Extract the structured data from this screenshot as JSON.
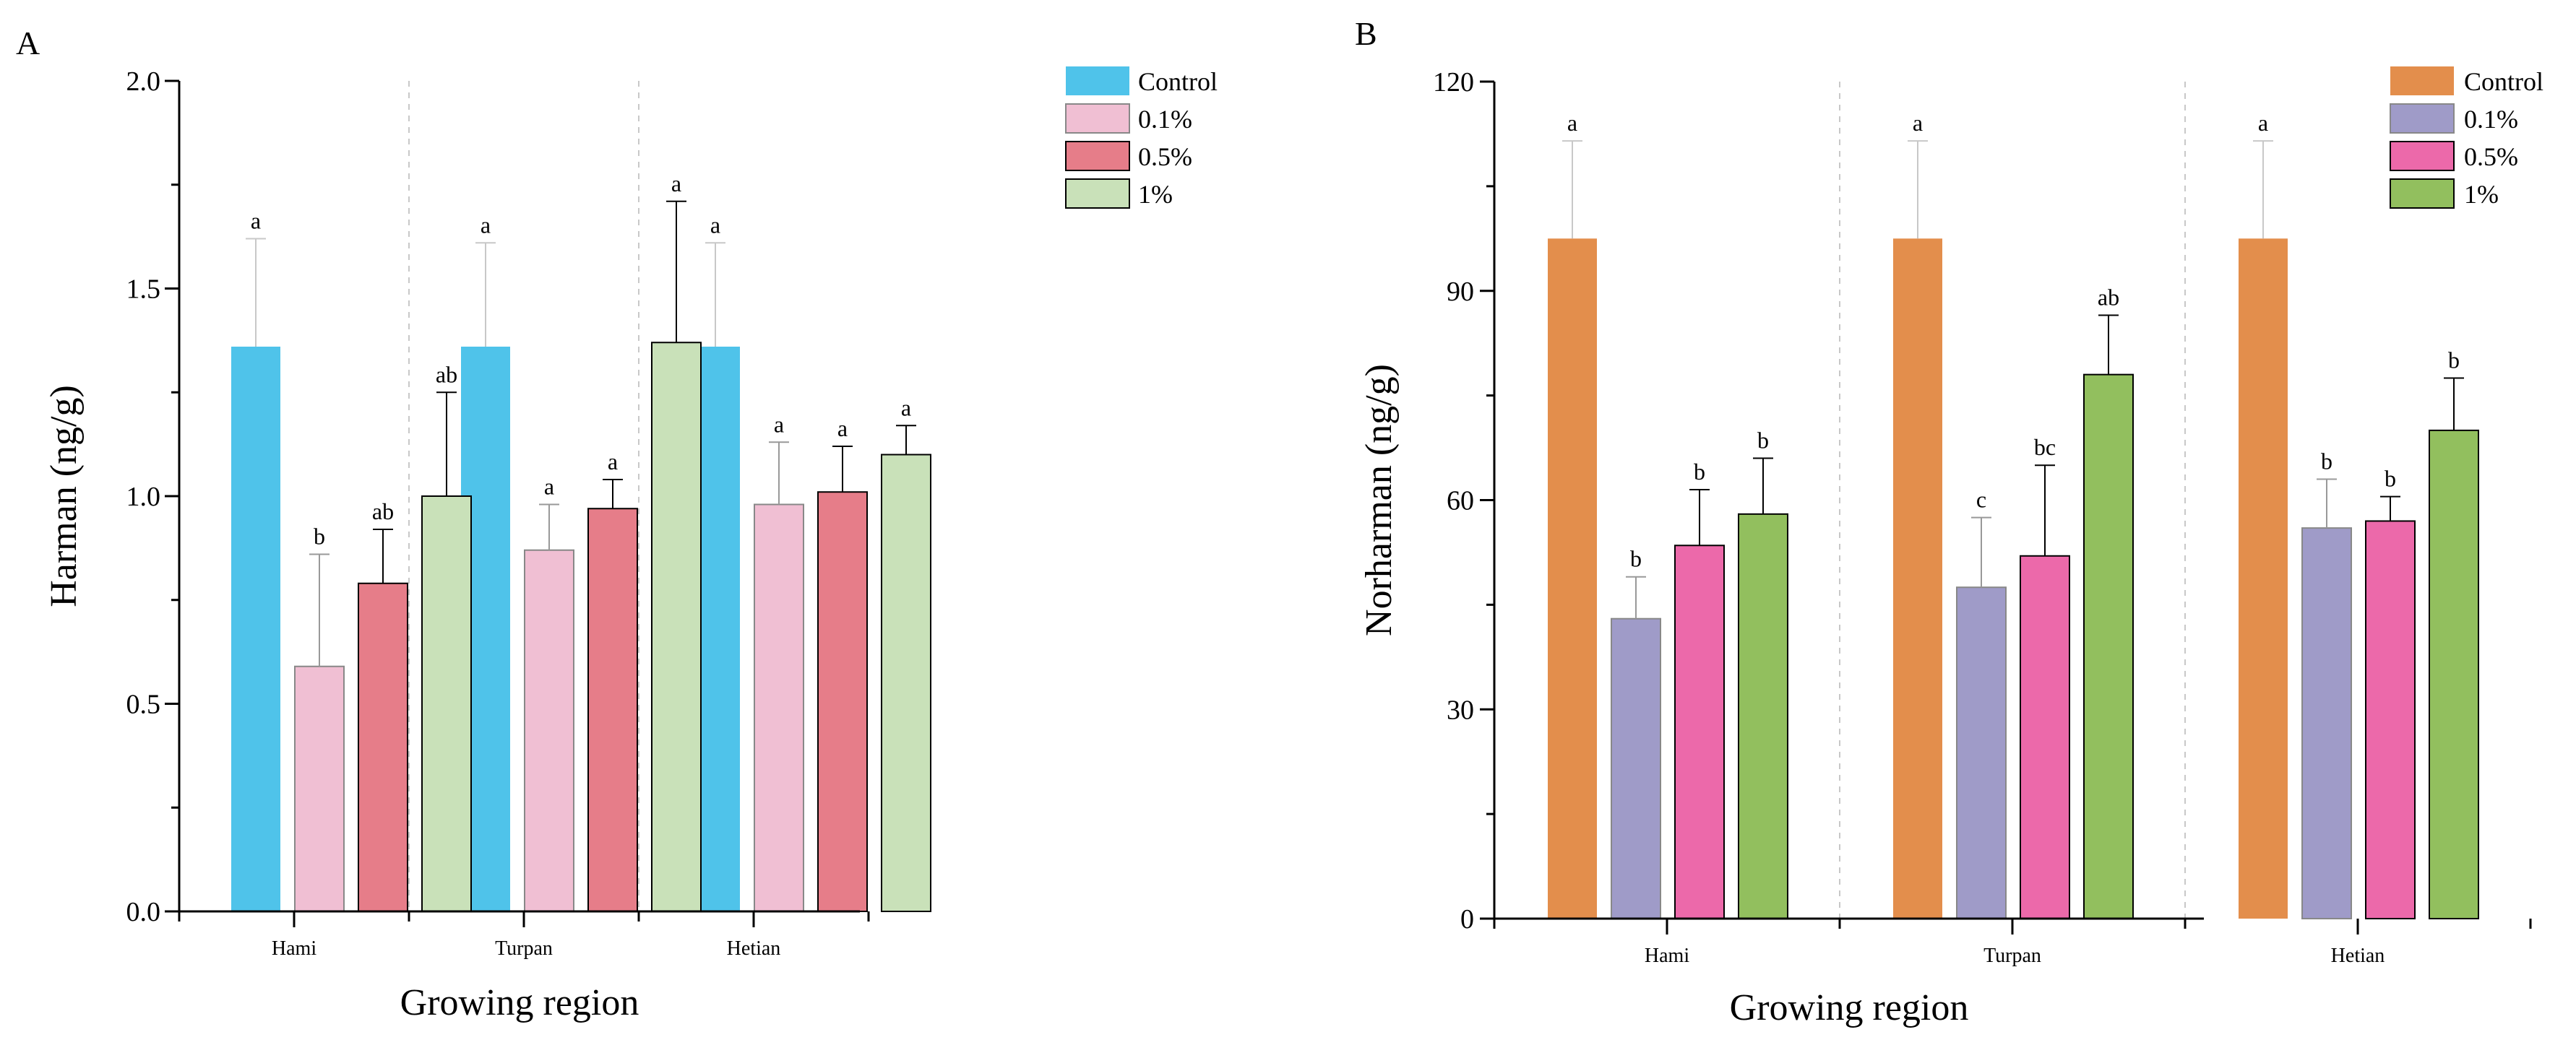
{
  "chart_data": [
    {
      "panel_label": "A",
      "type": "bar",
      "title": "",
      "xlabel": "Growing region",
      "ylabel": "Harman (ng/g)",
      "ylim": [
        0,
        2.0
      ],
      "yticks": [
        "0.0",
        "0.5",
        "1.0",
        "1.5",
        "2.0"
      ],
      "ytick_values": [
        0,
        0.5,
        1.0,
        1.5,
        2.0
      ],
      "categories": [
        "Hami",
        "Turpan",
        "Hetian"
      ],
      "legend_position": "top-right",
      "series": [
        {
          "name": "Control",
          "color": "#4fc3ea",
          "values": [
            1.36,
            1.36,
            1.36
          ],
          "errors": [
            0.26,
            0.25,
            0.25
          ],
          "letters": [
            "a",
            "a",
            "a"
          ]
        },
        {
          "name": "0.1%",
          "color": "#f0bfd3",
          "values": [
            0.59,
            0.87,
            0.98
          ],
          "errors": [
            0.27,
            0.11,
            0.15
          ],
          "letters": [
            "b",
            "a",
            "a"
          ]
        },
        {
          "name": "0.5%",
          "color": "#e67d89",
          "values": [
            0.79,
            0.97,
            1.01
          ],
          "errors": [
            0.13,
            0.07,
            0.11
          ],
          "letters": [
            "ab",
            "a",
            "a"
          ]
        },
        {
          "name": "1%",
          "color": "#c9e1b9",
          "values": [
            1.0,
            1.37,
            1.1
          ],
          "errors": [
            0.25,
            0.34,
            0.07
          ],
          "letters": [
            "ab",
            "a",
            "a"
          ]
        }
      ]
    },
    {
      "panel_label": "B",
      "type": "bar",
      "title": "",
      "xlabel": "Growing region",
      "ylabel": "Norharman (ng/g)",
      "ylim": [
        0,
        120
      ],
      "yticks": [
        "0",
        "30",
        "60",
        "90",
        "120"
      ],
      "ytick_values": [
        0,
        30,
        60,
        90,
        120
      ],
      "categories": [
        "Hami",
        "Turpan",
        "Hetian"
      ],
      "legend_position": "top-right",
      "series": [
        {
          "name": "Control",
          "color": "#e38e4c",
          "values": [
            97.5,
            97.5,
            97.5
          ],
          "errors": [
            14.0,
            14.0,
            14.0
          ],
          "letters": [
            "a",
            "a",
            "a"
          ]
        },
        {
          "name": "0.1%",
          "color": "#9f9bc8",
          "values": [
            43,
            47.5,
            56
          ],
          "errors": [
            6.0,
            10.0,
            7.0
          ],
          "letters": [
            "b",
            "c",
            "b"
          ]
        },
        {
          "name": "0.5%",
          "color": "#ec69aa",
          "values": [
            53.5,
            52,
            57
          ],
          "errors": [
            8.0,
            13.0,
            3.5
          ],
          "letters": [
            "b",
            "bc",
            "b"
          ]
        },
        {
          "name": "1%",
          "color": "#92bf5e",
          "values": [
            58,
            78,
            70
          ],
          "errors": [
            8.0,
            8.5,
            7.5
          ],
          "letters": [
            "b",
            "ab",
            "b"
          ]
        }
      ]
    }
  ]
}
